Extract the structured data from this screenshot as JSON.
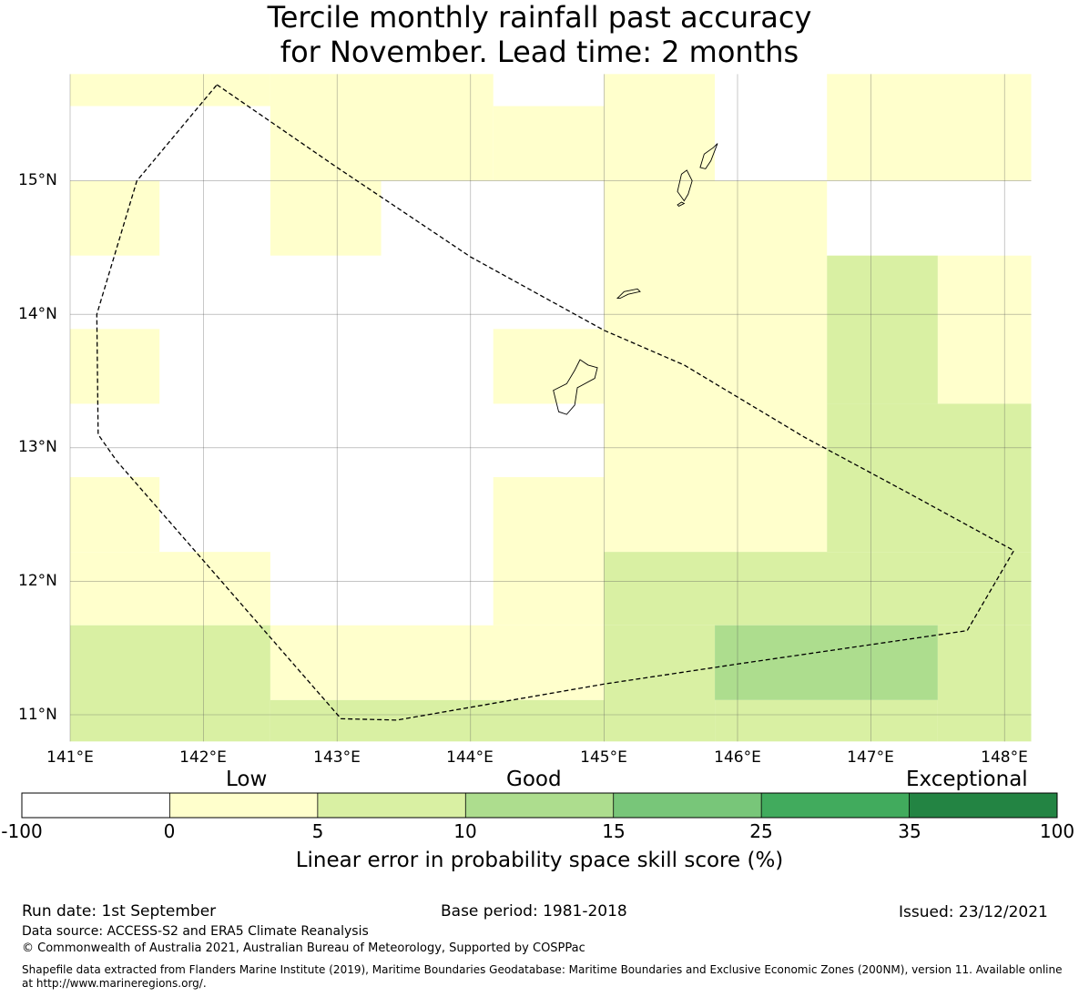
{
  "title": {
    "line1": "Tercile monthly rainfall past accuracy",
    "line2": "for November. Lead time: 2 months"
  },
  "map": {
    "lat_ticks": [
      "15°N",
      "14°N",
      "13°N",
      "12°N",
      "11°N"
    ],
    "lon_ticks": [
      "141°E",
      "142°E",
      "143°E",
      "144°E",
      "145°E",
      "146°E",
      "147°E",
      "148°E"
    ],
    "extent": {
      "lon": [
        141.0,
        148.2
      ],
      "lat": [
        10.8,
        15.8
      ]
    },
    "gridlines": true,
    "cell_colors": {
      "low": "#ffffcc",
      "good": "#d9f0a3",
      "good_plus": "#addd8e"
    },
    "cells": [
      {
        "lon": [
          141.0,
          142.5
        ],
        "lat": [
          15.56,
          15.8
        ],
        "class": "low"
      },
      {
        "lon": [
          142.5,
          144.17
        ],
        "lat": [
          15.0,
          15.8
        ],
        "class": "low"
      },
      {
        "lon": [
          144.17,
          145.0
        ],
        "lat": [
          15.0,
          15.56
        ],
        "class": "low"
      },
      {
        "lon": [
          145.0,
          145.83
        ],
        "lat": [
          15.0,
          15.8
        ],
        "class": "low"
      },
      {
        "lon": [
          146.67,
          148.2
        ],
        "lat": [
          15.0,
          15.8
        ],
        "class": "low"
      },
      {
        "lon": [
          141.0,
          141.67
        ],
        "lat": [
          14.44,
          15.0
        ],
        "class": "low"
      },
      {
        "lon": [
          142.5,
          143.33
        ],
        "lat": [
          14.44,
          15.0
        ],
        "class": "low"
      },
      {
        "lon": [
          145.0,
          146.67
        ],
        "lat": [
          12.22,
          15.0
        ],
        "class": "low"
      },
      {
        "lon": [
          146.67,
          147.5
        ],
        "lat": [
          13.33,
          14.44
        ],
        "class": "good"
      },
      {
        "lon": [
          147.5,
          148.2
        ],
        "lat": [
          13.33,
          14.44
        ],
        "class": "low"
      },
      {
        "lon": [
          141.0,
          141.67
        ],
        "lat": [
          13.33,
          13.89
        ],
        "class": "low"
      },
      {
        "lon": [
          144.17,
          145.0
        ],
        "lat": [
          13.33,
          13.89
        ],
        "class": "low"
      },
      {
        "lon": [
          146.67,
          148.2
        ],
        "lat": [
          12.22,
          13.33
        ],
        "class": "good"
      },
      {
        "lon": [
          141.0,
          141.67
        ],
        "lat": [
          12.22,
          12.78
        ],
        "class": "low"
      },
      {
        "lon": [
          144.17,
          145.0
        ],
        "lat": [
          11.67,
          12.78
        ],
        "class": "low"
      },
      {
        "lon": [
          141.0,
          142.5
        ],
        "lat": [
          11.67,
          12.22
        ],
        "class": "low"
      },
      {
        "lon": [
          145.0,
          148.2
        ],
        "lat": [
          11.67,
          12.22
        ],
        "class": "good"
      },
      {
        "lon": [
          141.0,
          142.5
        ],
        "lat": [
          10.8,
          11.67
        ],
        "class": "good"
      },
      {
        "lon": [
          142.5,
          145.0
        ],
        "lat": [
          11.11,
          11.67
        ],
        "class": "low"
      },
      {
        "lon": [
          142.5,
          145.0
        ],
        "lat": [
          10.8,
          11.11
        ],
        "class": "good"
      },
      {
        "lon": [
          145.0,
          145.83
        ],
        "lat": [
          10.8,
          11.67
        ],
        "class": "good"
      },
      {
        "lon": [
          145.83,
          147.5
        ],
        "lat": [
          11.11,
          11.67
        ],
        "class": "good_plus"
      },
      {
        "lon": [
          145.83,
          147.5
        ],
        "lat": [
          10.8,
          11.11
        ],
        "class": "good"
      },
      {
        "lon": [
          147.5,
          148.2
        ],
        "lat": [
          10.8,
          11.67
        ],
        "class": "good"
      }
    ],
    "boundary": [
      [
        142.1,
        15.72
      ],
      [
        143.0,
        15.1
      ],
      [
        144.0,
        14.43
      ],
      [
        145.0,
        13.88
      ],
      [
        145.6,
        13.62
      ],
      [
        146.5,
        13.08
      ],
      [
        147.3,
        12.65
      ],
      [
        148.07,
        12.23
      ],
      [
        147.72,
        11.63
      ],
      [
        146.0,
        11.38
      ],
      [
        145.0,
        11.23
      ],
      [
        143.45,
        10.96
      ],
      [
        143.03,
        10.97
      ],
      [
        141.35,
        12.9
      ],
      [
        141.21,
        13.1
      ],
      [
        141.2,
        14.0
      ],
      [
        141.5,
        15.0
      ],
      [
        142.1,
        15.72
      ]
    ],
    "islands": [
      [
        [
          144.62,
          13.43
        ],
        [
          144.72,
          13.48
        ],
        [
          144.78,
          13.58
        ],
        [
          144.82,
          13.66
        ],
        [
          144.88,
          13.62
        ],
        [
          144.95,
          13.6
        ],
        [
          144.93,
          13.52
        ],
        [
          144.8,
          13.45
        ],
        [
          144.78,
          13.32
        ],
        [
          144.72,
          13.25
        ],
        [
          144.66,
          13.27
        ],
        [
          144.64,
          13.35
        ],
        [
          144.62,
          13.43
        ]
      ],
      [
        [
          145.1,
          14.12
        ],
        [
          145.15,
          14.17
        ],
        [
          145.25,
          14.19
        ],
        [
          145.27,
          14.17
        ],
        [
          145.18,
          14.15
        ],
        [
          145.12,
          14.12
        ],
        [
          145.1,
          14.12
        ]
      ],
      [
        [
          145.6,
          14.85
        ],
        [
          145.55,
          14.92
        ],
        [
          145.58,
          15.05
        ],
        [
          145.62,
          15.08
        ],
        [
          145.66,
          15.0
        ],
        [
          145.63,
          14.9
        ],
        [
          145.6,
          14.85
        ]
      ],
      [
        [
          145.72,
          15.1
        ],
        [
          145.75,
          15.2
        ],
        [
          145.82,
          15.25
        ],
        [
          145.85,
          15.28
        ],
        [
          145.8,
          15.15
        ],
        [
          145.76,
          15.09
        ],
        [
          145.72,
          15.1
        ]
      ],
      [
        [
          145.55,
          14.82
        ],
        [
          145.58,
          14.84
        ],
        [
          145.6,
          14.83
        ],
        [
          145.56,
          14.81
        ],
        [
          145.55,
          14.82
        ]
      ]
    ]
  },
  "colorbar": {
    "categories": [
      "Low",
      "Good",
      "Exceptional"
    ],
    "ticks": [
      "-100",
      "0",
      "5",
      "10",
      "15",
      "25",
      "35",
      "100"
    ],
    "colors": [
      "#ffffff",
      "#ffffcc",
      "#d9f0a3",
      "#addd8e",
      "#78c679",
      "#41ab5d",
      "#238443"
    ],
    "label": "Linear error in probability space skill score (%)"
  },
  "footer": {
    "run_date": "Run date: 1st September",
    "base_period": "Base period: 1981-2018",
    "issued": "Issued: 23/12/2021",
    "data_source": "Data source: ACCESS-S2 and ERA5 Climate Reanalysis",
    "copyright": "© Commonwealth of Australia 2021, Australian Bureau of Meteorology, Supported by COSPPac",
    "shapefile_line1": "Shapefile data extracted from Flanders Marine Institute (2019), Maritime Boundaries Geodatabase: Maritime Boundaries and Exclusive Economic Zones (200NM), version 11. Available online",
    "shapefile_line2": "at http://www.marineregions.org/."
  }
}
